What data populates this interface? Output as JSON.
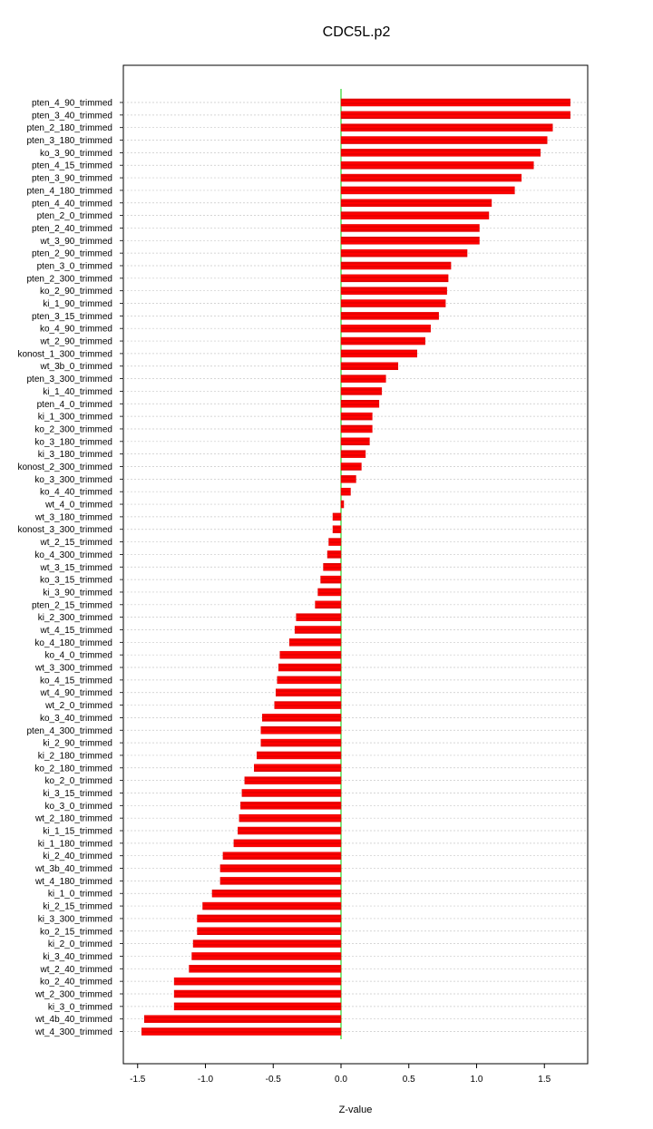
{
  "chart_data": {
    "type": "bar",
    "orientation": "horizontal",
    "title": "CDC5L.p2",
    "xlabel": "Z-value",
    "ylabel": "",
    "xlim": [
      -1.6,
      1.8
    ],
    "xticks": [
      -1.5,
      -1.0,
      -0.5,
      0.0,
      0.5,
      1.0,
      1.5
    ],
    "xtick_labels": [
      "-1.5",
      "-1.0",
      "-0.5",
      "0.0",
      "0.5",
      "1.0",
      "1.5"
    ],
    "grid": "horizontal dotted",
    "colors": {
      "bar": "#ff0000",
      "bar_hatch": "#b00000",
      "zero_line": "#00cc00",
      "grid": "#c8c8c8"
    },
    "categories": [
      "pten_4_90_trimmed",
      "pten_3_40_trimmed",
      "pten_2_180_trimmed",
      "pten_3_180_trimmed",
      "ko_3_90_trimmed",
      "pten_4_15_trimmed",
      "pten_3_90_trimmed",
      "pten_4_180_trimmed",
      "pten_4_40_trimmed",
      "pten_2_0_trimmed",
      "pten_2_40_trimmed",
      "wt_3_90_trimmed",
      "pten_2_90_trimmed",
      "pten_3_0_trimmed",
      "pten_2_300_trimmed",
      "ko_2_90_trimmed",
      "ki_1_90_trimmed",
      "pten_3_15_trimmed",
      "ko_4_90_trimmed",
      "wt_2_90_trimmed",
      "konost_1_300_trimmed",
      "wt_3b_0_trimmed",
      "pten_3_300_trimmed",
      "ki_1_40_trimmed",
      "pten_4_0_trimmed",
      "ki_1_300_trimmed",
      "ko_2_300_trimmed",
      "ko_3_180_trimmed",
      "ki_3_180_trimmed",
      "konost_2_300_trimmed",
      "ko_3_300_trimmed",
      "ko_4_40_trimmed",
      "wt_4_0_trimmed",
      "wt_3_180_trimmed",
      "konost_3_300_trimmed",
      "wt_2_15_trimmed",
      "ko_4_300_trimmed",
      "wt_3_15_trimmed",
      "ko_3_15_trimmed",
      "ki_3_90_trimmed",
      "pten_2_15_trimmed",
      "ki_2_300_trimmed",
      "wt_4_15_trimmed",
      "ko_4_180_trimmed",
      "ko_4_0_trimmed",
      "wt_3_300_trimmed",
      "ko_4_15_trimmed",
      "wt_4_90_trimmed",
      "wt_2_0_trimmed",
      "ko_3_40_trimmed",
      "pten_4_300_trimmed",
      "ki_2_90_trimmed",
      "ki_2_180_trimmed",
      "ko_2_180_trimmed",
      "ko_2_0_trimmed",
      "ki_3_15_trimmed",
      "ko_3_0_trimmed",
      "wt_2_180_trimmed",
      "ki_1_15_trimmed",
      "ki_1_180_trimmed",
      "ki_2_40_trimmed",
      "wt_3b_40_trimmed",
      "wt_4_180_trimmed",
      "ki_1_0_trimmed",
      "ki_2_15_trimmed",
      "ki_3_300_trimmed",
      "ko_2_15_trimmed",
      "ki_2_0_trimmed",
      "ki_3_40_trimmed",
      "wt_2_40_trimmed",
      "ko_2_40_trimmed",
      "wt_2_300_trimmed",
      "ki_3_0_trimmed",
      "wt_4b_40_trimmed",
      "wt_4_300_trimmed"
    ],
    "values": [
      1.69,
      1.69,
      1.56,
      1.52,
      1.47,
      1.42,
      1.33,
      1.28,
      1.11,
      1.09,
      1.02,
      1.02,
      0.93,
      0.81,
      0.79,
      0.78,
      0.77,
      0.72,
      0.66,
      0.62,
      0.56,
      0.42,
      0.33,
      0.3,
      0.28,
      0.23,
      0.23,
      0.21,
      0.18,
      0.15,
      0.11,
      0.07,
      0.02,
      -0.06,
      -0.06,
      -0.09,
      -0.1,
      -0.13,
      -0.15,
      -0.17,
      -0.19,
      -0.33,
      -0.34,
      -0.38,
      -0.45,
      -0.46,
      -0.47,
      -0.48,
      -0.49,
      -0.58,
      -0.59,
      -0.59,
      -0.62,
      -0.64,
      -0.71,
      -0.73,
      -0.74,
      -0.75,
      -0.76,
      -0.79,
      -0.87,
      -0.89,
      -0.89,
      -0.95,
      -1.02,
      -1.06,
      -1.06,
      -1.09,
      -1.1,
      -1.12,
      -1.23,
      -1.23,
      -1.23,
      -1.45,
      -1.47
    ]
  }
}
